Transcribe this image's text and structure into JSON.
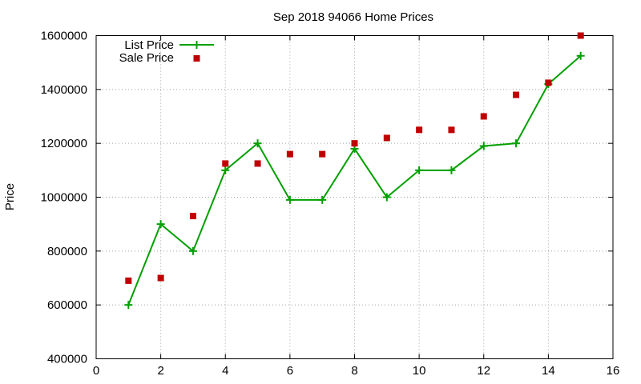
{
  "chart_data": {
    "type": "line",
    "title": "Sep 2018 94066 Home Prices",
    "xlabel": "",
    "ylabel": "Price",
    "xlim": [
      0,
      16
    ],
    "ylim": [
      400000,
      1600000
    ],
    "xticks": [
      0,
      2,
      4,
      6,
      8,
      10,
      12,
      14,
      16
    ],
    "yticks": [
      400000,
      600000,
      800000,
      1000000,
      1200000,
      1400000,
      1600000
    ],
    "xtick_labels": [
      "0",
      "2",
      "4",
      "6",
      "8",
      "10",
      "12",
      "14",
      "16"
    ],
    "ytick_labels": [
      "400000",
      "600000",
      "800000",
      "1000000",
      "1200000",
      "1400000",
      "1600000"
    ],
    "grid": true,
    "legend_position": "top-left",
    "series": [
      {
        "name": "List Price",
        "style": "line-with-plus-markers",
        "color": "#00a000",
        "x": [
          1,
          2,
          3,
          4,
          5,
          6,
          7,
          8,
          9,
          10,
          11,
          12,
          13,
          14,
          15
        ],
        "y": [
          600000,
          900000,
          800000,
          1100000,
          1200000,
          990000,
          990000,
          1180000,
          1000000,
          1100000,
          1100000,
          1190000,
          1200000,
          1420000,
          1525000
        ]
      },
      {
        "name": "Sale Price",
        "style": "square-markers",
        "color": "#c00000",
        "x": [
          1,
          2,
          3,
          4,
          5,
          6,
          7,
          8,
          9,
          10,
          11,
          12,
          13,
          14,
          15
        ],
        "y": [
          690000,
          700000,
          930000,
          1125000,
          1125000,
          1160000,
          1160000,
          1200000,
          1220000,
          1250000,
          1250000,
          1300000,
          1380000,
          1425000,
          1600000
        ]
      }
    ]
  }
}
